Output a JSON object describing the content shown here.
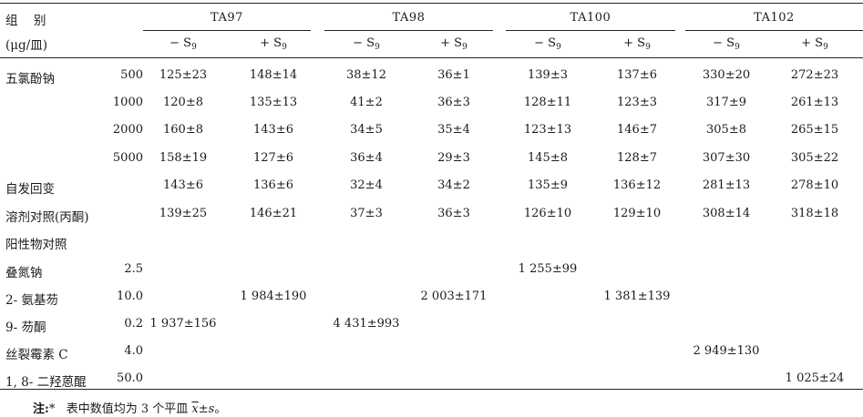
{
  "header": {
    "group_label": "组　别",
    "unit_label": "(μg/皿)",
    "strains": [
      "TA97",
      "TA98",
      "TA100",
      "TA102"
    ],
    "sub_minus": "− S",
    "sub_plus": "+ S",
    "sub_index": "9"
  },
  "rows": [
    {
      "name": "五氯酚钠",
      "dose": "500",
      "cells": [
        "125±23",
        "148±14",
        "38±12",
        "36±1",
        "139±3",
        "137±6",
        "330±20",
        "272±23"
      ]
    },
    {
      "name": "",
      "dose": "1000",
      "cells": [
        "120±8",
        "135±13",
        "41±2",
        "36±3",
        "128±11",
        "123±3",
        "317±9",
        "261±13"
      ]
    },
    {
      "name": "",
      "dose": "2000",
      "cells": [
        "160±8",
        "143±6",
        "34±5",
        "35±4",
        "123±13",
        "146±7",
        "305±8",
        "265±15"
      ]
    },
    {
      "name": "",
      "dose": "5000",
      "cells": [
        "158±19",
        "127±6",
        "36±4",
        "29±3",
        "145±8",
        "128±7",
        "307±30",
        "305±22"
      ]
    },
    {
      "name": "自发回变",
      "dose": "",
      "cells": [
        "143±6",
        "136±6",
        "32±4",
        "34±2",
        "135±9",
        "136±12",
        "281±13",
        "278±10"
      ]
    },
    {
      "name": "溶剂对照(丙酮)",
      "dose": "",
      "cells": [
        "139±25",
        "146±21",
        "37±3",
        "36±3",
        "126±10",
        "129±10",
        "308±14",
        "318±18"
      ]
    },
    {
      "name": "阳性物对照",
      "dose": "",
      "cells": [
        "",
        "",
        "",
        "",
        "",
        "",
        "",
        ""
      ]
    },
    {
      "name": "叠氮钠",
      "dose": "2.5",
      "cells": [
        "",
        "",
        "",
        "",
        "1 255±99",
        "",
        "",
        ""
      ]
    },
    {
      "name": "2- 氨基芴",
      "dose": "10.0",
      "cells": [
        "",
        "1 984±190",
        "",
        "2 003±171",
        "",
        "1 381±139",
        "",
        ""
      ]
    },
    {
      "name": "9- 芴酮",
      "dose": "0.2",
      "cells": [
        "1 937±156",
        "",
        "4 431±993",
        "",
        "",
        "",
        "",
        ""
      ]
    },
    {
      "name": "丝裂霉素 C",
      "dose": "4.0",
      "cells": [
        "",
        "",
        "",
        "",
        "",
        "",
        "2 949±130",
        ""
      ]
    },
    {
      "name": "1, 8- 二羟蒽醌",
      "dose": "50.0",
      "cells": [
        "",
        "",
        "",
        "",
        "",
        "",
        "",
        "1 025±24"
      ]
    }
  ],
  "note": {
    "prefix": "注:",
    "star": "*",
    "text_before": "表中数值均为 3 个平皿",
    "xbar": "x",
    "pm": "±",
    "s": "s",
    "end": "。"
  }
}
